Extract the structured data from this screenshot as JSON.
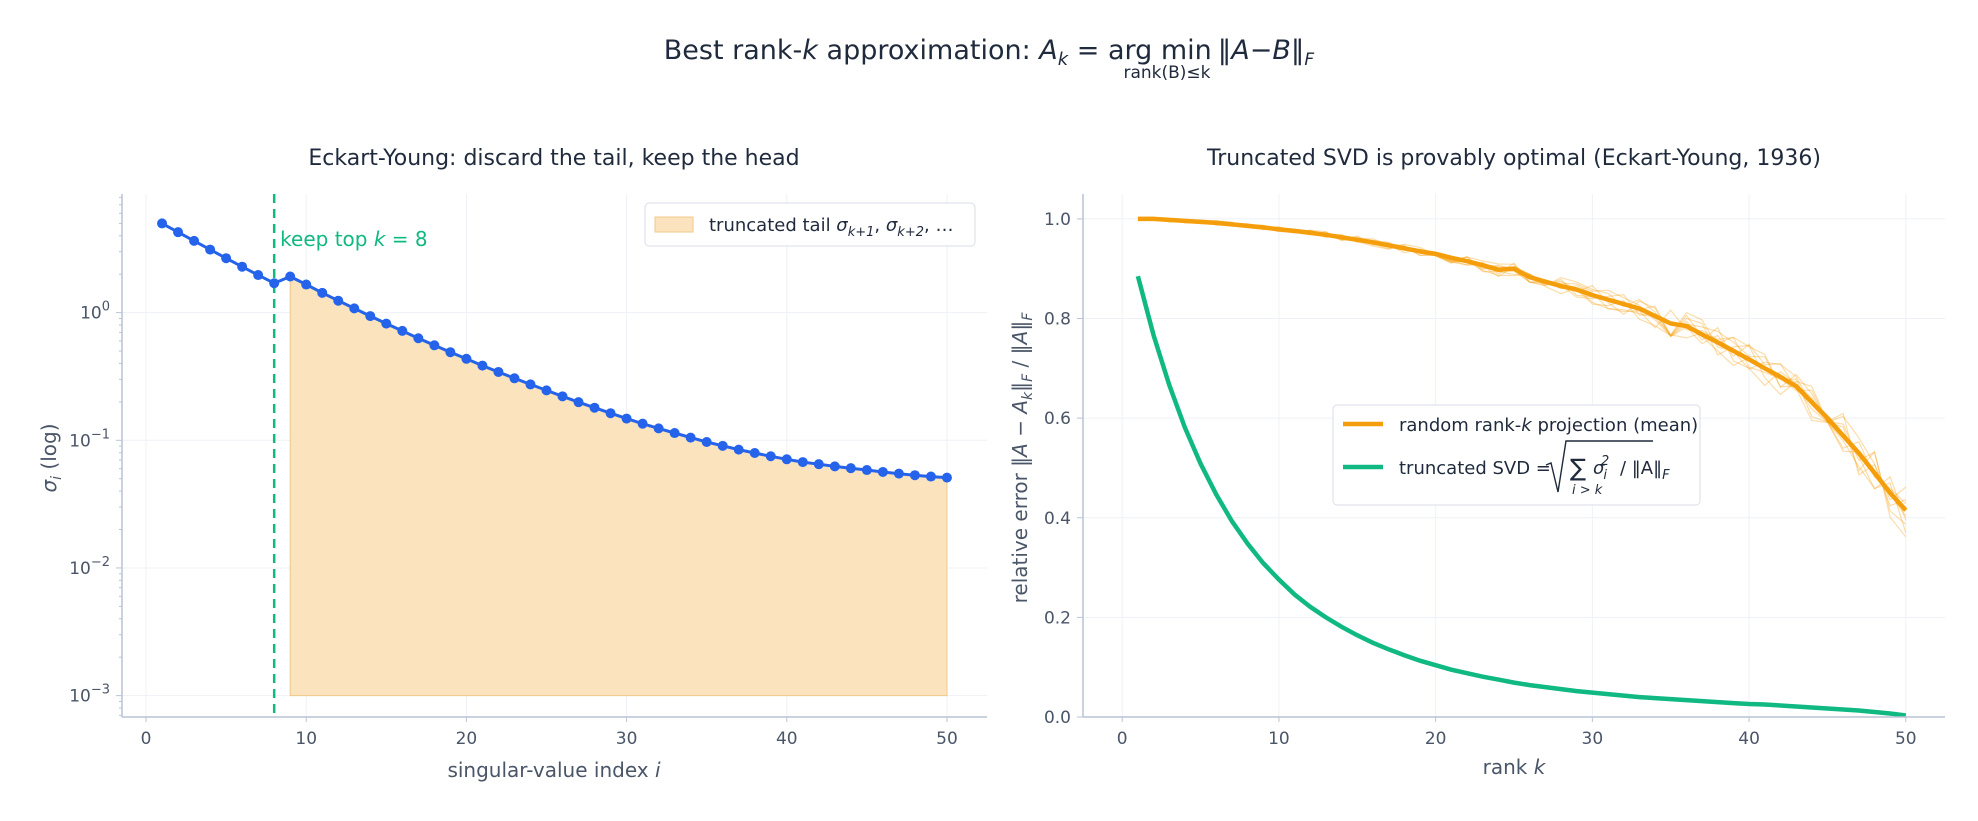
{
  "suptitle": {
    "prefix": "Best rank-",
    "k": "k",
    "middle": " approximation: ",
    "A": "A",
    "sub_k": "k",
    "eq": " = arg ",
    "min": "min",
    "under": "rank(B)≤k",
    "norm": "‖A−B‖",
    "norm_sub": "F"
  },
  "colors": {
    "blue": "#2563eb",
    "orange": "#f59e0b",
    "tail_fill": "#fae3bd",
    "green": "#10b981",
    "axis": "#b8c4d6",
    "grid": "#eef1f6",
    "text": "#1f2a3c",
    "muted": "#4a5568"
  },
  "chart_data": [
    {
      "type": "line",
      "title": "Eckart-Young: discard the tail, keep the head",
      "xlabel": "singular-value index i",
      "ylabel": "σ_i (log)",
      "xlim": [
        -1.5,
        52.5
      ],
      "ylim": [
        0.00068,
        8.5
      ],
      "yscale": "log",
      "xticks": [
        "0",
        "10",
        "20",
        "30",
        "40",
        "50"
      ],
      "yticks": [
        "10^0",
        "10^-1",
        "10^-2",
        "10^-3"
      ],
      "grid": true,
      "legend_position": "top-right",
      "series": [
        {
          "kind": "line-markers",
          "x": [
            1,
            2,
            3,
            4,
            5,
            6,
            7,
            8,
            9,
            10,
            11,
            12,
            13,
            14,
            15,
            16,
            17,
            18,
            19,
            20,
            21,
            22,
            23,
            24,
            25,
            26,
            27,
            28,
            29,
            30,
            31,
            32,
            33,
            34,
            35,
            36,
            37,
            38,
            39,
            40,
            41,
            42,
            43,
            44,
            45,
            46,
            47,
            48,
            49,
            50
          ],
          "values": [
            5.0,
            4.27,
            3.65,
            3.12,
            2.67,
            2.29,
            1.97,
            1.7,
            1.92,
            1.66,
            1.43,
            1.24,
            1.08,
            0.94,
            0.82,
            0.72,
            0.63,
            0.555,
            0.49,
            0.435,
            0.385,
            0.343,
            0.306,
            0.274,
            0.246,
            0.221,
            0.199,
            0.18,
            0.163,
            0.148,
            0.135,
            0.124,
            0.114,
            0.105,
            0.097,
            0.0905,
            0.0845,
            0.0795,
            0.075,
            0.071,
            0.0675,
            0.065,
            0.0625,
            0.0605,
            0.0585,
            0.0565,
            0.0548,
            0.0533,
            0.052,
            0.051
          ]
        },
        {
          "kind": "fill-tail",
          "name": "truncated tail σ_{k+1}, σ_{k+2}, …",
          "x_from": 9,
          "x_to": 50,
          "baseline": 0.001
        }
      ],
      "vline": {
        "x": 8,
        "label_prefix": "keep top ",
        "label_k": "k",
        "label_suffix": " = 8"
      },
      "legend": {
        "prefix": "truncated tail ",
        "s1": "σ",
        "s1sub": "k+1",
        "sep": ", ",
        "s2": "σ",
        "s2sub": "k+2",
        "tail": ", …"
      }
    },
    {
      "type": "line",
      "title": "Truncated SVD is provably optimal (Eckart-Young, 1936)",
      "xlabel": "rank k",
      "ylabel": "relative error  ‖A − A_k‖_F / ‖A‖_F",
      "xlim": [
        -2.5,
        52.5
      ],
      "ylim": [
        0,
        1.05
      ],
      "xticks": [
        "0",
        "10",
        "20",
        "30",
        "40",
        "50"
      ],
      "yticks": [
        "0.0",
        "0.2",
        "0.4",
        "0.6",
        "0.8",
        "1.0"
      ],
      "grid": true,
      "legend_position": "center-right",
      "series": [
        {
          "name": "random rank-k projection (mean)",
          "x": [
            1,
            2,
            3,
            4,
            5,
            6,
            7,
            8,
            9,
            10,
            11,
            12,
            13,
            14,
            15,
            16,
            17,
            18,
            19,
            20,
            21,
            22,
            23,
            24,
            25,
            26,
            27,
            28,
            29,
            30,
            31,
            32,
            33,
            34,
            35,
            36,
            37,
            38,
            39,
            40,
            41,
            42,
            43,
            44,
            45,
            46,
            47,
            48,
            49,
            50
          ],
          "values": [
            1.0,
            1.0,
            0.998,
            0.996,
            0.994,
            0.992,
            0.989,
            0.986,
            0.983,
            0.979,
            0.976,
            0.972,
            0.968,
            0.963,
            0.958,
            0.953,
            0.947,
            0.941,
            0.935,
            0.93,
            0.922,
            0.915,
            0.907,
            0.898,
            0.9,
            0.883,
            0.874,
            0.865,
            0.858,
            0.847,
            0.838,
            0.829,
            0.82,
            0.805,
            0.79,
            0.785,
            0.768,
            0.752,
            0.735,
            0.718,
            0.7,
            0.683,
            0.664,
            0.632,
            0.6,
            0.565,
            0.53,
            0.49,
            0.45,
            0.415
          ]
        },
        {
          "name": "truncated SVD = √(Σ_{i>k} σ_i²) / ‖A‖_F",
          "x": [
            1,
            2,
            3,
            4,
            5,
            6,
            7,
            8,
            9,
            10,
            11,
            12,
            13,
            14,
            15,
            16,
            17,
            18,
            19,
            20,
            21,
            22,
            23,
            24,
            25,
            26,
            27,
            28,
            29,
            30,
            31,
            32,
            33,
            34,
            35,
            36,
            37,
            38,
            39,
            40,
            41,
            42,
            43,
            44,
            45,
            46,
            47,
            48,
            49,
            50
          ],
          "values": [
            0.885,
            0.767,
            0.667,
            0.581,
            0.509,
            0.447,
            0.393,
            0.348,
            0.309,
            0.276,
            0.246,
            0.221,
            0.2,
            0.181,
            0.164,
            0.149,
            0.136,
            0.124,
            0.113,
            0.104,
            0.095,
            0.088,
            0.081,
            0.075,
            0.069,
            0.064,
            0.06,
            0.056,
            0.052,
            0.049,
            0.046,
            0.043,
            0.04,
            0.038,
            0.036,
            0.034,
            0.032,
            0.03,
            0.028,
            0.026,
            0.025,
            0.023,
            0.021,
            0.019,
            0.017,
            0.015,
            0.013,
            0.01,
            0.007,
            0.003
          ]
        }
      ],
      "legend": {
        "entry1_prefix": "random rank-",
        "entry1_k": "k",
        "entry1_suffix": " projection (mean)",
        "entry2_prefix": "truncated SVD = ",
        "entry2_sum": "∑",
        "entry2_under": "i > k",
        "entry2_sigma": "σ",
        "entry2_i": "i",
        "entry2_sq": "2",
        "entry2_div": " / ‖A‖",
        "entry2_F": "F"
      }
    }
  ]
}
